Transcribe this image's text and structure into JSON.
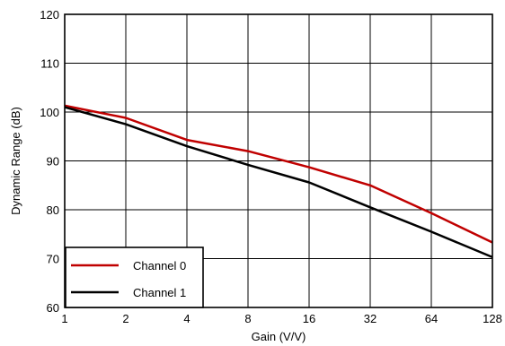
{
  "chart_data": {
    "type": "line",
    "title": "",
    "xlabel": "Gain (V/V)",
    "ylabel": "Dynamic Range (dB)",
    "x_scale": "log2",
    "x_ticks": [
      1,
      2,
      4,
      8,
      16,
      32,
      64,
      128
    ],
    "x_tick_labels": [
      "1",
      "2",
      "4",
      "8",
      "16",
      "32",
      "64",
      "128"
    ],
    "y_ticks": [
      60,
      70,
      80,
      90,
      100,
      110,
      120
    ],
    "y_tick_labels": [
      "60",
      "70",
      "80",
      "90",
      "100",
      "110",
      "120"
    ],
    "xlim": [
      1,
      128
    ],
    "ylim": [
      60,
      120
    ],
    "grid": true,
    "legend_position": "bottom-left",
    "series": [
      {
        "name": "Channel 0",
        "color": "#c00000",
        "x": [
          1,
          2,
          4,
          8,
          16,
          32,
          64,
          128
        ],
        "y": [
          101.3,
          98.8,
          94.3,
          92.0,
          88.7,
          85.0,
          79.3,
          73.3
        ]
      },
      {
        "name": "Channel 1",
        "color": "#000000",
        "x": [
          1,
          2,
          4,
          8,
          16,
          32,
          64,
          128
        ],
        "y": [
          101.0,
          97.5,
          93.0,
          89.2,
          85.6,
          80.5,
          75.5,
          70.3
        ]
      }
    ]
  }
}
